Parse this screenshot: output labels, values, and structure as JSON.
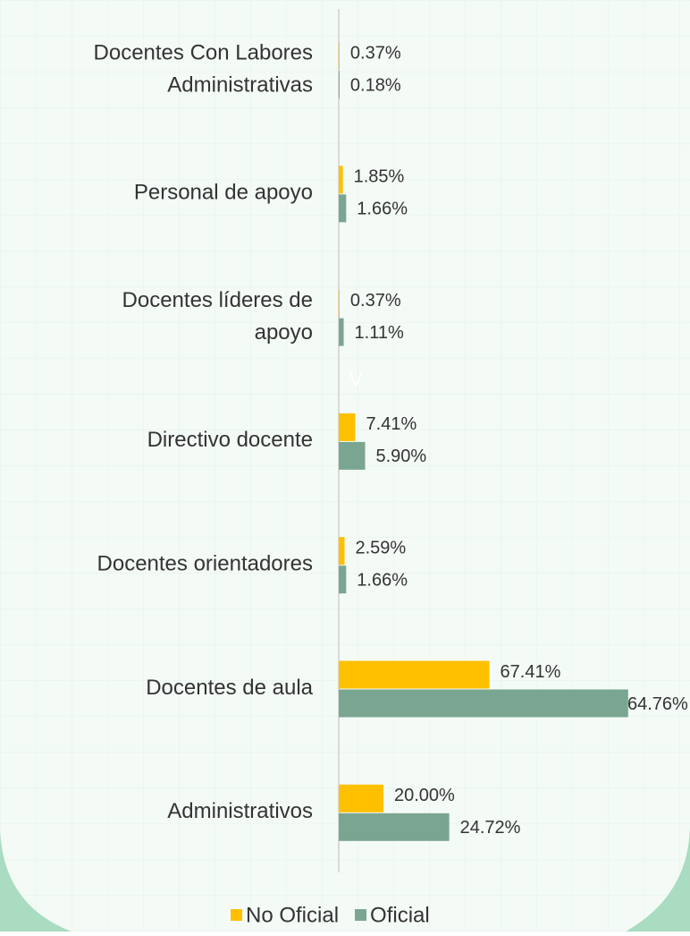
{
  "chart_data": {
    "type": "hbar",
    "categories": [
      [
        "Docentes Con Labores",
        "Administrativas"
      ],
      [
        "Personal de apoyo"
      ],
      [
        "Docentes líderes de",
        "apoyo"
      ],
      [
        "Directivo docente"
      ],
      [
        "Docentes orientadores"
      ],
      [
        "Docentes de aula"
      ],
      [
        "Administrativos"
      ]
    ],
    "series": [
      {
        "name": "No Oficial",
        "color": "#ffc000",
        "axis": "x2",
        "values": [
          0.37,
          1.85,
          0.37,
          7.41,
          2.59,
          67.41,
          20.0
        ],
        "value_labels": [
          "0.37%",
          "1.85%",
          "0.37%",
          "7.41%",
          "2.59%",
          "67.41%",
          "20.00%"
        ]
      },
      {
        "name": "Oficial",
        "color": "#7aa691",
        "values": [
          0.18,
          1.66,
          1.11,
          5.9,
          1.66,
          64.76,
          24.72
        ],
        "value_labels": [
          "0.18%",
          "1.66%",
          "1.11%",
          "5.90%",
          "1.66%",
          "64.76%",
          "24.72%"
        ]
      }
    ],
    "xlim": [
      0,
      80
    ],
    "x2lim": [
      0,
      160
    ],
    "annotations": [
      "V"
    ],
    "legend": "bottom"
  }
}
